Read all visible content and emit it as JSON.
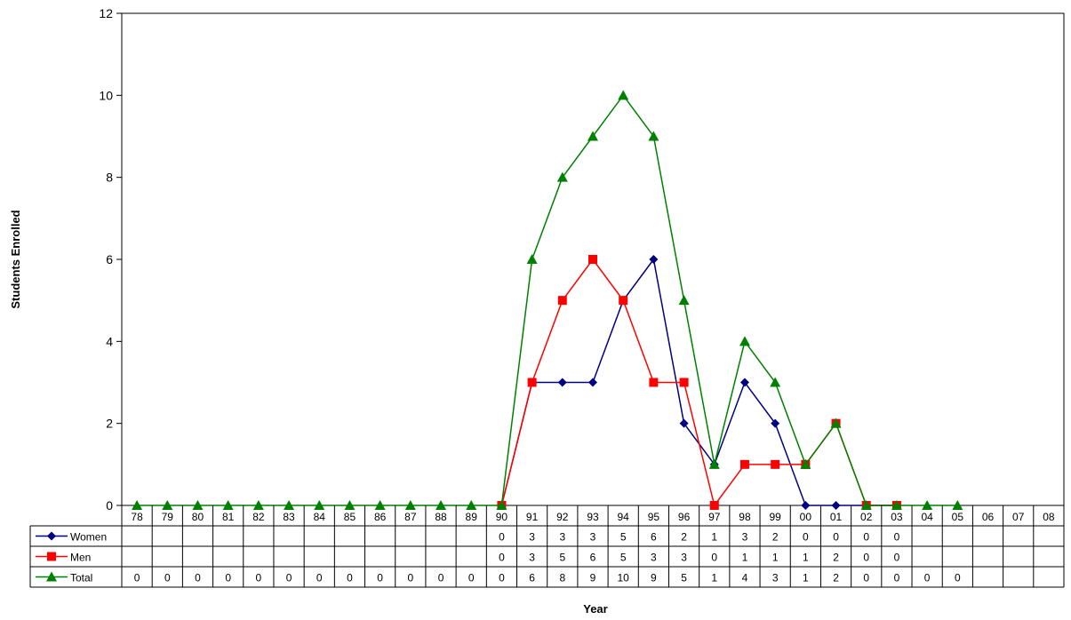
{
  "chart_data": {
    "type": "line",
    "title": "",
    "xlabel": "Year",
    "ylabel": "Students Enrolled",
    "ylim": [
      0,
      12
    ],
    "yticks": [
      0,
      2,
      4,
      6,
      8,
      10,
      12
    ],
    "grid": false,
    "legend": "data-table-left",
    "categories": [
      "78",
      "79",
      "80",
      "81",
      "82",
      "83",
      "84",
      "85",
      "86",
      "87",
      "88",
      "89",
      "90",
      "91",
      "92",
      "93",
      "94",
      "95",
      "96",
      "97",
      "98",
      "99",
      "00",
      "01",
      "02",
      "03",
      "04",
      "05",
      "06",
      "07",
      "08"
    ],
    "series": [
      {
        "name": "Women",
        "color": "#000080",
        "marker": "diamond",
        "values": [
          null,
          null,
          null,
          null,
          null,
          null,
          null,
          null,
          null,
          null,
          null,
          null,
          0,
          3,
          3,
          3,
          5,
          6,
          2,
          1,
          3,
          2,
          0,
          0,
          0,
          0,
          null,
          null,
          null,
          null,
          null
        ]
      },
      {
        "name": "Men",
        "color": "#ff0000",
        "marker": "square",
        "values": [
          null,
          null,
          null,
          null,
          null,
          null,
          null,
          null,
          null,
          null,
          null,
          null,
          0,
          3,
          5,
          6,
          5,
          3,
          3,
          0,
          1,
          1,
          1,
          2,
          0,
          0,
          null,
          null,
          null,
          null,
          null
        ]
      },
      {
        "name": "Total",
        "color": "#008000",
        "marker": "triangle",
        "values": [
          0,
          0,
          0,
          0,
          0,
          0,
          0,
          0,
          0,
          0,
          0,
          0,
          0,
          6,
          8,
          9,
          10,
          9,
          5,
          1,
          4,
          3,
          1,
          2,
          0,
          0,
          0,
          0,
          null,
          null,
          null
        ]
      }
    ]
  }
}
